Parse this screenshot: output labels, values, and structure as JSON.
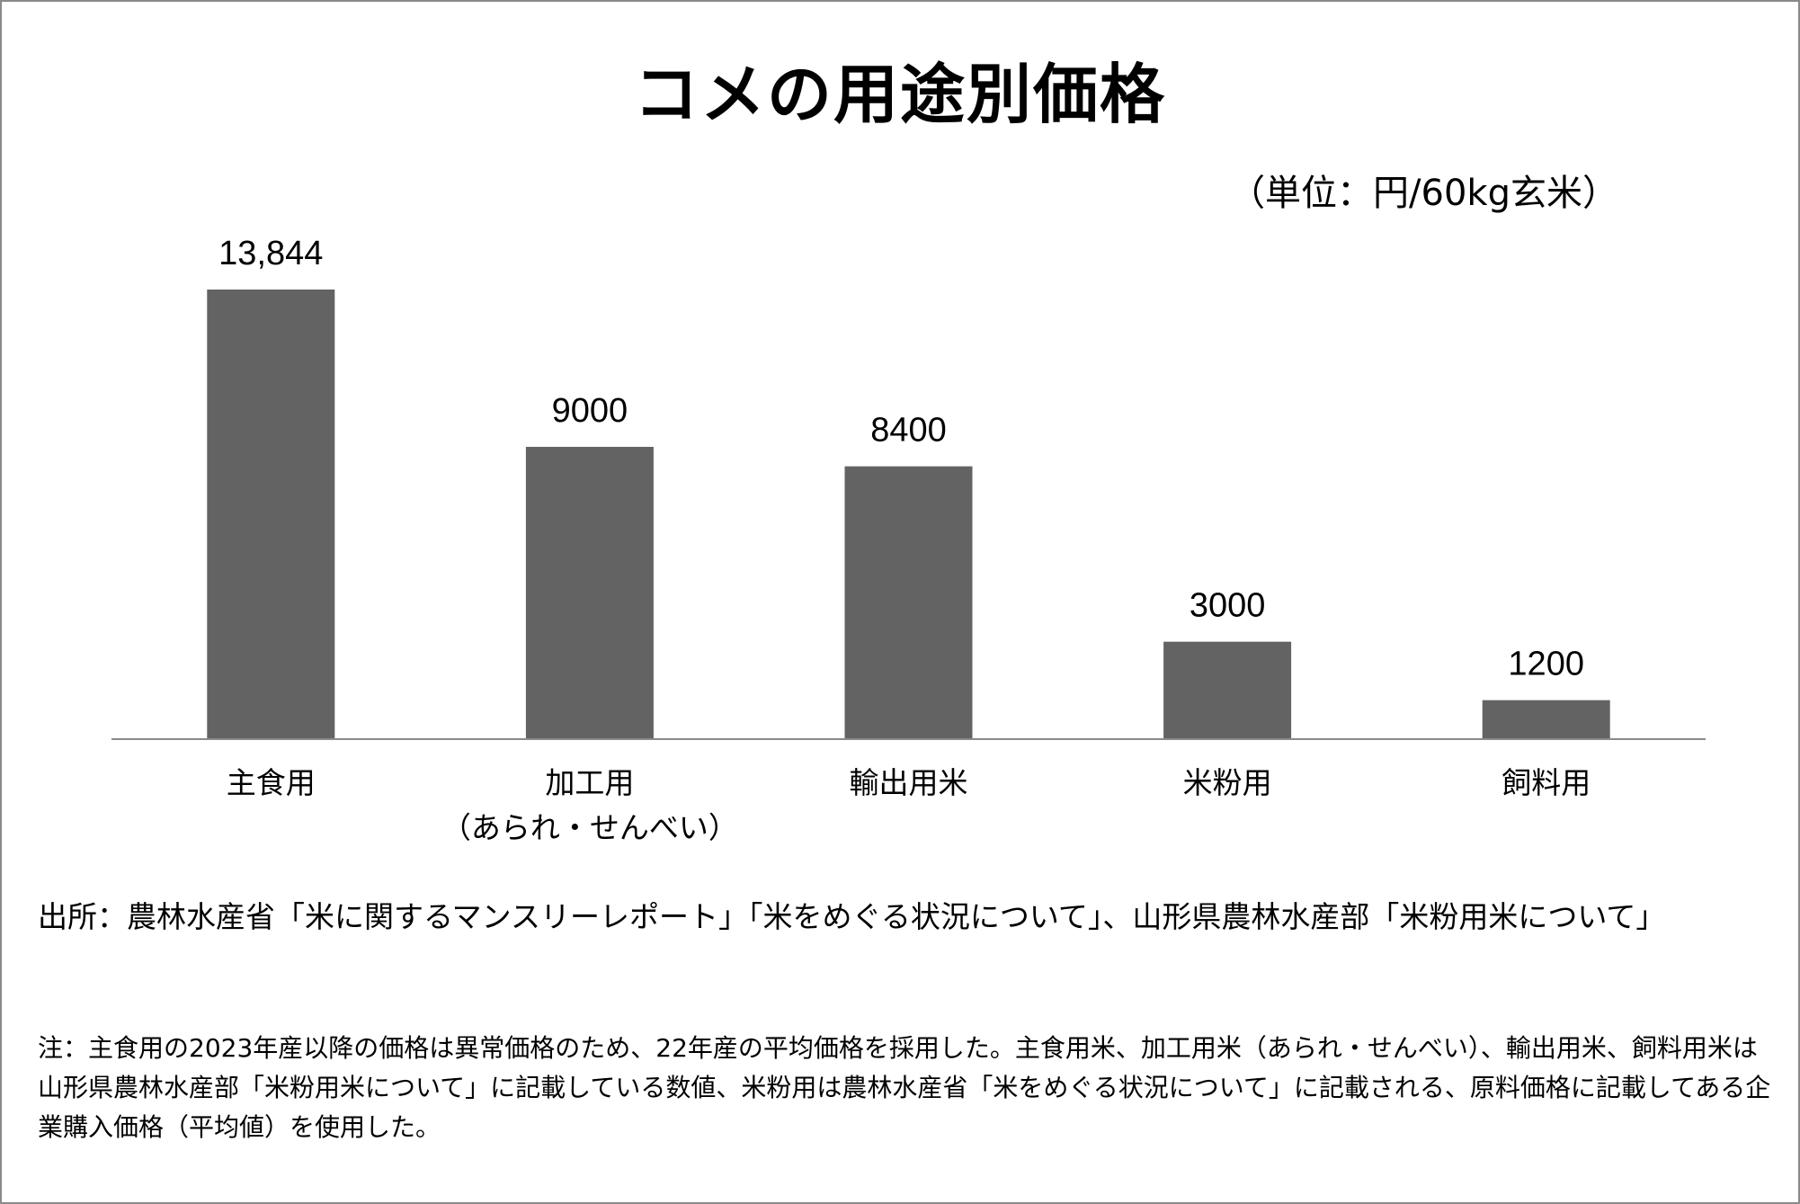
{
  "chart_data": {
    "type": "bar",
    "title": "コメの用途別価格",
    "unit_label": "（単位：円/60kg玄米）",
    "categories": [
      {
        "lines": [
          "主食用"
        ]
      },
      {
        "lines": [
          "加工用",
          "（あられ・せんべい）"
        ]
      },
      {
        "lines": [
          "輸出用米"
        ]
      },
      {
        "lines": [
          "米粉用"
        ]
      },
      {
        "lines": [
          "飼料用"
        ]
      }
    ],
    "values": [
      13844,
      9000,
      8400,
      3000,
      1200
    ],
    "value_labels": [
      "13,844",
      "9000",
      "8400",
      "3000",
      "1200"
    ],
    "ylim": [
      0,
      15000
    ],
    "bar_color": "#636363",
    "axis_color": "#8a8a8a",
    "grid": false,
    "legend": "none"
  },
  "source_text": "出所：農林水産省「米に関するマンスリーレポート」「米をめぐる状況について」、山形県農林水産部「米粉用米について」",
  "note_text": "注：主食用の2023年産以降の価格は異常価格のため、22年産の平均価格を採用した。主食用米、加工用米（あられ・せんべい）、輸出用米、飼料用米は山形県農林水産部「米粉用米について」に記載している数値、米粉用は農林水産省「米をめぐる状況について」に記載される、原料価格に記載してある企業購入価格（平均値）を使用した。"
}
